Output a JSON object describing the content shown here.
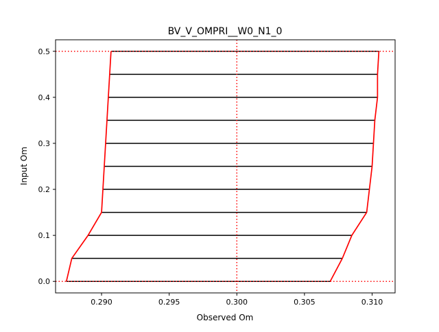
{
  "chart_data": {
    "type": "line",
    "title": "BV_V_OMPRI__W0_N1_0",
    "xlabel": "Observed Om",
    "ylabel": "Input Om",
    "xlim": [
      0.2866,
      0.3117
    ],
    "ylim": [
      -0.025,
      0.525
    ],
    "xticks": [
      0.29,
      0.295,
      0.3,
      0.305,
      0.31
    ],
    "xtick_labels": [
      "0.290",
      "0.295",
      "0.300",
      "0.305",
      "0.310"
    ],
    "yticks": [
      0.0,
      0.1,
      0.2,
      0.3,
      0.4,
      0.5
    ],
    "ytick_labels": [
      "0.0",
      "0.1",
      "0.2",
      "0.3",
      "0.4",
      "0.5"
    ],
    "grid": false,
    "colors": {
      "envelope": "#ff0000",
      "interval": "#000000",
      "reference": "#ff0000"
    },
    "reference_lines": {
      "vertical_x": 0.3,
      "horizontal_y": [
        0.0,
        0.5
      ],
      "style": "dotted"
    },
    "input_om": [
      0.0,
      0.05,
      0.1,
      0.15,
      0.2,
      0.25,
      0.3,
      0.35,
      0.4,
      0.45,
      0.5
    ],
    "lower_observed": [
      0.2874,
      0.2878,
      0.289,
      0.29,
      0.2901,
      0.2902,
      0.2903,
      0.2904,
      0.2905,
      0.2906,
      0.2907
    ],
    "upper_observed": [
      0.3069,
      0.3078,
      0.3085,
      0.3096,
      0.3098,
      0.31,
      0.3101,
      0.3102,
      0.3104,
      0.3104,
      0.3105
    ],
    "series": [
      {
        "name": "",
        "role": "lower_envelope",
        "color": "#ff0000"
      },
      {
        "name": "",
        "role": "upper_envelope",
        "color": "#ff0000"
      }
    ]
  }
}
